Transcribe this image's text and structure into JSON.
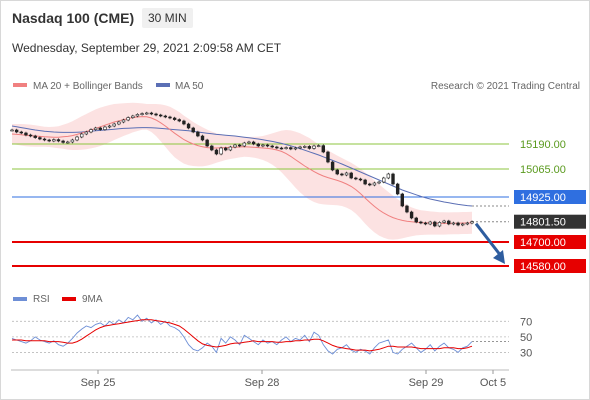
{
  "header": {
    "title": "Nasdaq 100 (CME)",
    "timeframe": "30 MIN",
    "datetime": "Wednesday, September 29, 2021 2:09:58 AM CET"
  },
  "legend": {
    "ma20": "MA 20 + Bollinger Bands",
    "ma50": "MA 50",
    "rsi": "RSI",
    "ma9": "9MA"
  },
  "copyright": "Research © 2021 Trading Central",
  "colors": {
    "ma20": "#f08080",
    "bands": "#fbd8d8",
    "ma50": "#5b6fb5",
    "resistance": "#8cc63f",
    "pivot": "#2f6fe0",
    "support": "#e60000",
    "current": "#333333",
    "arrow": "#2e5d9f",
    "rsi": "#6e8fd6",
    "rsi_ma": "#e60000"
  },
  "chart_data": [
    {
      "type": "line",
      "name": "price",
      "x_ticks": [
        "Sep 25",
        "Sep 28",
        "Sep 29",
        "Oct 5"
      ],
      "price_range": [
        14520,
        15430
      ],
      "levels": [
        {
          "label": "15190.00",
          "value": 15190,
          "kind": "resistance"
        },
        {
          "label": "15065.00",
          "value": 15065,
          "kind": "resistance"
        },
        {
          "label": "14925.00",
          "value": 14925,
          "kind": "pivot"
        },
        {
          "label": "14801.50",
          "value": 14801.5,
          "kind": "current"
        },
        {
          "label": "14700.00",
          "value": 14700,
          "kind": "support"
        },
        {
          "label": "14580.00",
          "value": 14580,
          "kind": "support"
        }
      ],
      "close": [
        15260,
        15250,
        15245,
        15235,
        15230,
        15222,
        15215,
        15210,
        15205,
        15212,
        15205,
        15198,
        15200,
        15210,
        15225,
        15240,
        15250,
        15262,
        15270,
        15262,
        15275,
        15280,
        15290,
        15300,
        15310,
        15322,
        15330,
        15338,
        15342,
        15345,
        15340,
        15335,
        15330,
        15325,
        15320,
        15312,
        15305,
        15290,
        15270,
        15250,
        15230,
        15210,
        15180,
        15160,
        15140,
        15170,
        15160,
        15175,
        15185,
        15180,
        15195,
        15200,
        15190,
        15180,
        15185,
        15180,
        15175,
        15170,
        15168,
        15172,
        15165,
        15170,
        15175,
        15178,
        15168,
        15180,
        15182,
        15150,
        15100,
        15060,
        15040,
        15035,
        15045,
        15020,
        15015,
        15010,
        14990,
        14985,
        14995,
        15000,
        15020,
        15040,
        14990,
        14940,
        14880,
        14850,
        14820,
        14800,
        14795,
        14790,
        14800,
        14780,
        14798,
        14805,
        14790,
        14795,
        14785,
        14790,
        14795,
        14801.5
      ],
      "ma20": [
        15240,
        15238,
        15236,
        15234,
        15232,
        15230,
        15228,
        15226,
        15225,
        15224,
        15224,
        15226,
        15228,
        15232,
        15238,
        15245,
        15252,
        15260,
        15268,
        15276,
        15284,
        15292,
        15300,
        15306,
        15312,
        15317,
        15322,
        15325,
        15327,
        15326,
        15320,
        15310,
        15296,
        15280,
        15262,
        15244,
        15228,
        15212,
        15200,
        15190,
        15182,
        15176,
        15172,
        15170,
        15170,
        15171,
        15172,
        15173,
        15174,
        15175,
        15176,
        15175,
        15174,
        15172,
        15170,
        15168,
        15165,
        15160,
        15153,
        15142,
        15128,
        15112,
        15096,
        15080,
        15066,
        15052,
        15040,
        15030,
        15022,
        15015,
        15008,
        15000,
        14990,
        14978,
        14962,
        14942,
        14920,
        14898,
        14878,
        14860,
        14845,
        14832,
        14822,
        14814,
        14808,
        14804,
        14801,
        14799,
        14797,
        14796,
        14795,
        14794,
        14793,
        14793,
        14793,
        14794,
        14794,
        14795,
        14795,
        14796
      ],
      "ma50": [
        15280,
        15276,
        15272,
        15268,
        15264,
        15260,
        15257,
        15254,
        15252,
        15250,
        15249,
        15248,
        15248,
        15248,
        15249,
        15250,
        15252,
        15254,
        15256,
        15258,
        15260,
        15262,
        15264,
        15266,
        15268,
        15269,
        15270,
        15271,
        15272,
        15272,
        15271,
        15270,
        15268,
        15266,
        15264,
        15262,
        15260,
        15258,
        15256,
        15253,
        15250,
        15247,
        15244,
        15241,
        15238,
        15236,
        15234,
        15232,
        15230,
        15227,
        15224,
        15221,
        15218,
        15215,
        15211,
        15207,
        15203,
        15198,
        15193,
        15187,
        15181,
        15174,
        15167,
        15159,
        15151,
        15143,
        15135,
        15126,
        15117,
        15108,
        15099,
        15090,
        15080,
        15070,
        15060,
        15050,
        15040,
        15030,
        15020,
        15010,
        15000,
        14990,
        14980,
        14970,
        14960,
        14952,
        14944,
        14936,
        14928,
        14921,
        14915,
        14910,
        14905,
        14900,
        14896,
        14892,
        14888,
        14885,
        14882,
        14880
      ],
      "band_width": [
        50,
        52,
        54,
        55,
        55,
        54,
        52,
        50,
        50,
        52,
        55,
        60,
        66,
        72,
        78,
        84,
        88,
        92,
        95,
        96,
        95,
        93,
        90,
        86,
        82,
        78,
        74,
        70,
        66,
        64,
        70,
        80,
        92,
        104,
        114,
        120,
        122,
        120,
        116,
        110,
        104,
        98,
        90,
        82,
        74,
        68,
        62,
        58,
        55,
        52,
        50,
        50,
        52,
        55,
        60,
        68,
        78,
        90,
        104,
        118,
        130,
        140,
        148,
        152,
        154,
        152,
        148,
        142,
        136,
        130,
        124,
        120,
        118,
        118,
        120,
        124,
        128,
        130,
        130,
        128,
        124,
        118,
        110,
        100,
        90,
        80,
        72,
        66,
        62,
        60,
        58,
        57,
        56,
        56,
        55,
        55,
        55,
        55,
        55,
        55
      ]
    },
    {
      "type": "line",
      "name": "rsi",
      "y_ticks": [
        70,
        50,
        30
      ],
      "y_range": [
        10,
        82
      ],
      "rsi": [
        48,
        46,
        44,
        42,
        45,
        50,
        46,
        44,
        42,
        45,
        40,
        38,
        42,
        48,
        55,
        60,
        64,
        62,
        66,
        68,
        64,
        70,
        66,
        72,
        68,
        75,
        72,
        78,
        70,
        74,
        68,
        72,
        66,
        70,
        64,
        62,
        58,
        50,
        40,
        34,
        32,
        36,
        42,
        38,
        30,
        48,
        42,
        50,
        46,
        40,
        52,
        48,
        44,
        40,
        46,
        42,
        44,
        40,
        46,
        50,
        44,
        48,
        46,
        52,
        44,
        56,
        52,
        40,
        32,
        28,
        34,
        36,
        40,
        33,
        30,
        34,
        32,
        28,
        36,
        42,
        44,
        46,
        30,
        28,
        34,
        38,
        42,
        36,
        30,
        34,
        40,
        32,
        38,
        42,
        36,
        34,
        30,
        36,
        38,
        44
      ],
      "rsi_ma": [
        46,
        46,
        46,
        45,
        45,
        45,
        45,
        45,
        44,
        44,
        44,
        43,
        42,
        42,
        44,
        47,
        51,
        55,
        59,
        62,
        64,
        65,
        66,
        67,
        68,
        69,
        70,
        71,
        72,
        72,
        72,
        71,
        70,
        69,
        68,
        66,
        64,
        60,
        55,
        50,
        45,
        41,
        39,
        38,
        37,
        38,
        39,
        41,
        42,
        42,
        43,
        44,
        45,
        44,
        44,
        44,
        44,
        43,
        43,
        44,
        44,
        45,
        45,
        46,
        46,
        47,
        47,
        45,
        42,
        39,
        37,
        36,
        35,
        34,
        33,
        33,
        33,
        32,
        33,
        34,
        36,
        38,
        38,
        37,
        37,
        37,
        37,
        36,
        35,
        35,
        35,
        35,
        35,
        36,
        36,
        36,
        35,
        35,
        36,
        38
      ]
    }
  ]
}
